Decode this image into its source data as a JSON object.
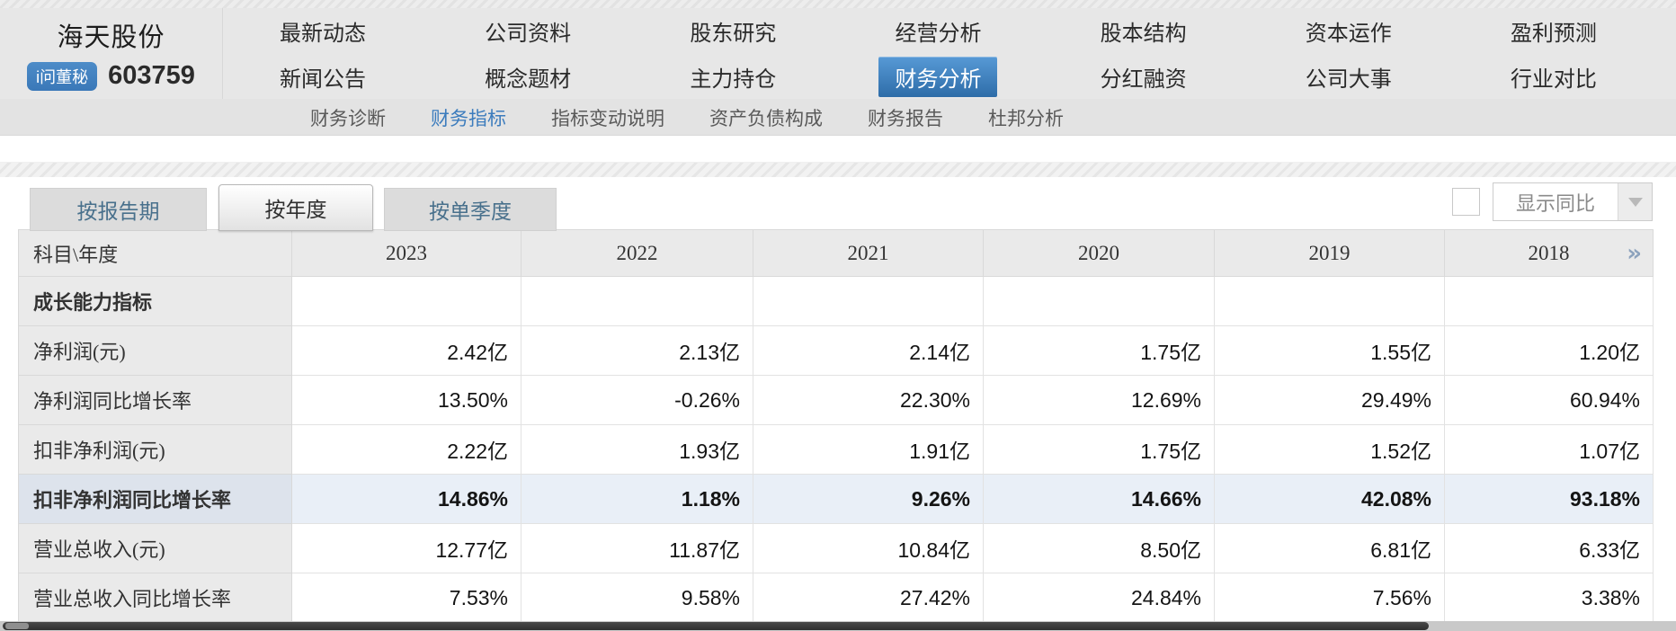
{
  "company": {
    "name": "海天股份",
    "code": "603759",
    "badge": "i问董秘"
  },
  "nav": {
    "columns": [
      {
        "top": "最新动态",
        "bottom": "新闻公告"
      },
      {
        "top": "公司资料",
        "bottom": "概念题材"
      },
      {
        "top": "股东研究",
        "bottom": "主力持仓"
      },
      {
        "top": "经营分析",
        "bottom": "财务分析"
      },
      {
        "top": "股本结构",
        "bottom": "分红融资"
      },
      {
        "top": "资本运作",
        "bottom": "公司大事"
      },
      {
        "top": "盈利预测",
        "bottom": "行业对比"
      }
    ],
    "active": "财务分析"
  },
  "subnav": {
    "items": [
      "财务诊断",
      "财务指标",
      "指标变动说明",
      "资产负债构成",
      "财务报告",
      "杜邦分析"
    ],
    "active": "财务指标"
  },
  "tabs": [
    {
      "label": "按报告期",
      "active": false
    },
    {
      "label": "按年度",
      "active": true
    },
    {
      "label": "按单季度",
      "active": false
    }
  ],
  "controls": {
    "checkbox_checked": false,
    "dropdown_label": "显示同比",
    "dropdown_arrow_icon": "triangle-down",
    "more_columns_icon": "double-chevron-right"
  },
  "table": {
    "header": [
      "科目\\年度",
      "2023",
      "2022",
      "2021",
      "2020",
      "2019",
      "2018"
    ],
    "rows": [
      {
        "label": "成长能力指标",
        "type": "section",
        "values": [
          "",
          "",
          "",
          "",
          "",
          ""
        ]
      },
      {
        "label": "净利润(元)",
        "type": "data",
        "values": [
          "2.42亿",
          "2.13亿",
          "2.14亿",
          "1.75亿",
          "1.55亿",
          "1.20亿"
        ]
      },
      {
        "label": "净利润同比增长率",
        "type": "data",
        "values": [
          "13.50%",
          "-0.26%",
          "22.30%",
          "12.69%",
          "29.49%",
          "60.94%"
        ]
      },
      {
        "label": "扣非净利润(元)",
        "type": "data",
        "values": [
          "2.22亿",
          "1.93亿",
          "1.91亿",
          "1.75亿",
          "1.52亿",
          "1.07亿"
        ]
      },
      {
        "label": "扣非净利润同比增长率",
        "type": "highlight",
        "values": [
          "14.86%",
          "1.18%",
          "9.26%",
          "14.66%",
          "42.08%",
          "93.18%"
        ]
      },
      {
        "label": "营业总收入(元)",
        "type": "data",
        "values": [
          "12.77亿",
          "11.87亿",
          "10.84亿",
          "8.50亿",
          "6.81亿",
          "6.33亿"
        ]
      },
      {
        "label": "营业总收入同比增长率",
        "type": "data",
        "values": [
          "7.53%",
          "9.58%",
          "27.42%",
          "24.84%",
          "7.56%",
          "3.38%"
        ]
      }
    ]
  },
  "colors": {
    "accent_blue": "#3a78b8",
    "active_link_blue": "#3c7cbd",
    "highlight_row_bg": "#e9eff7",
    "highlight_label_bg": "#dde3ec",
    "header_cell_bg": "#eaeaea",
    "chevron_blue": "#8ca2bd"
  }
}
